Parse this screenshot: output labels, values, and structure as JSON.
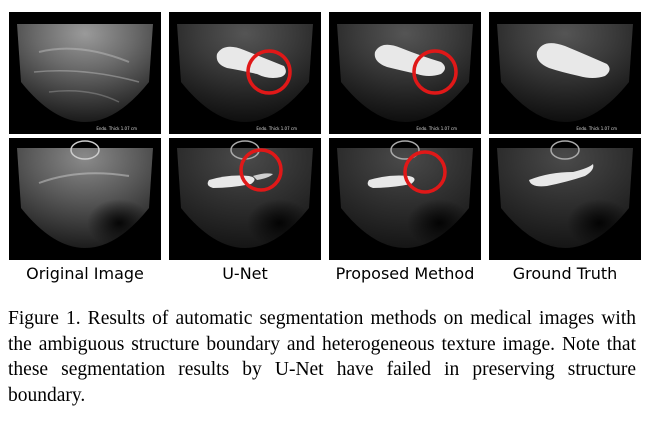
{
  "columns": [
    {
      "label": "Original Image"
    },
    {
      "label": "U-Net"
    },
    {
      "label": "Proposed Method"
    },
    {
      "label": "Ground Truth"
    }
  ],
  "watermark": "Endo. Thick 1.07 cm",
  "caption": "Figure 1. Results of automatic segmentation methods on medical images with the ambiguous structure boundary and heterogeneous texture image. Note that these segmentation results by U-Net have failed in preserving structure boundary.",
  "colors": {
    "highlight_circle": "#e01818",
    "segmentation": "#e8e8e8",
    "ultrasound_bg": "#000000"
  }
}
